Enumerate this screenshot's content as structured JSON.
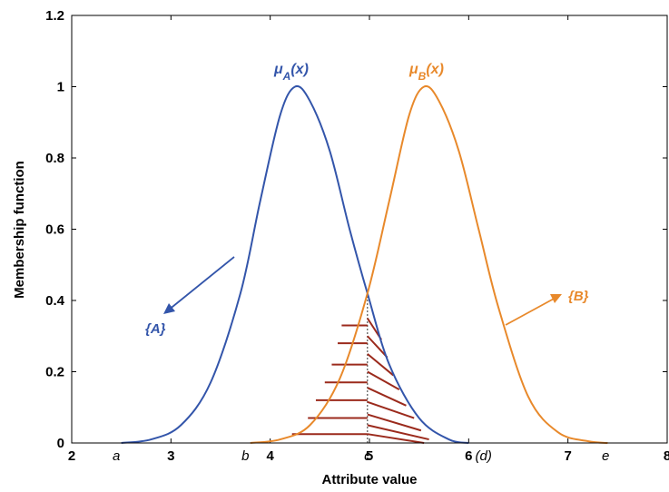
{
  "chart_data": {
    "type": "line",
    "title": "",
    "xlabel": "Attribute value",
    "ylabel": "Membership function",
    "xlim": [
      2,
      8
    ],
    "ylim": [
      0,
      1.2
    ],
    "x_ticks": [
      2,
      3,
      4,
      5,
      6,
      7,
      8
    ],
    "x_tick_labels": [
      "2",
      "3",
      "4",
      "5",
      "6",
      "7",
      "8"
    ],
    "y_ticks": [
      0,
      0.2,
      0.4,
      0.6,
      0.8,
      1,
      1.2
    ],
    "y_tick_labels": [
      "0",
      "0.2",
      "0.4",
      "0.6",
      "0.8",
      "1",
      "1.2"
    ],
    "grid": false,
    "series": [
      {
        "name": "",
        "color": "#3355aa",
        "x": [
          2.5,
          2.8,
          3.1,
          3.4,
          3.7,
          3.9,
          4.1,
          4.25,
          4.4,
          4.6,
          4.8,
          4.98,
          5.2,
          5.5,
          5.8,
          6.0
        ],
        "y": [
          0.0,
          0.01,
          0.05,
          0.17,
          0.42,
          0.68,
          0.92,
          1.0,
          0.96,
          0.82,
          0.6,
          0.42,
          0.22,
          0.07,
          0.01,
          0.0
        ]
      },
      {
        "name": "",
        "color": "#e8892b",
        "x": [
          3.8,
          4.1,
          4.4,
          4.7,
          4.98,
          5.2,
          5.4,
          5.55,
          5.7,
          5.9,
          6.1,
          6.3,
          6.6,
          6.9,
          7.2,
          7.4
        ],
        "y": [
          0.0,
          0.01,
          0.05,
          0.18,
          0.42,
          0.68,
          0.92,
          1.0,
          0.96,
          0.82,
          0.6,
          0.38,
          0.13,
          0.03,
          0.005,
          0.0
        ]
      }
    ],
    "annotations": {
      "mu_a": "x",
      "mu_b": "x",
      "set_a": "{A}",
      "set_b": "{B}",
      "markers": [
        {
          "label": "a",
          "x": 2.45
        },
        {
          "label": "b",
          "x": 3.75
        },
        {
          "label": "c",
          "x": 4.98
        },
        {
          "label": "(d)",
          "x": 6.15
        },
        {
          "label": "e",
          "x": 7.38
        }
      ]
    }
  }
}
